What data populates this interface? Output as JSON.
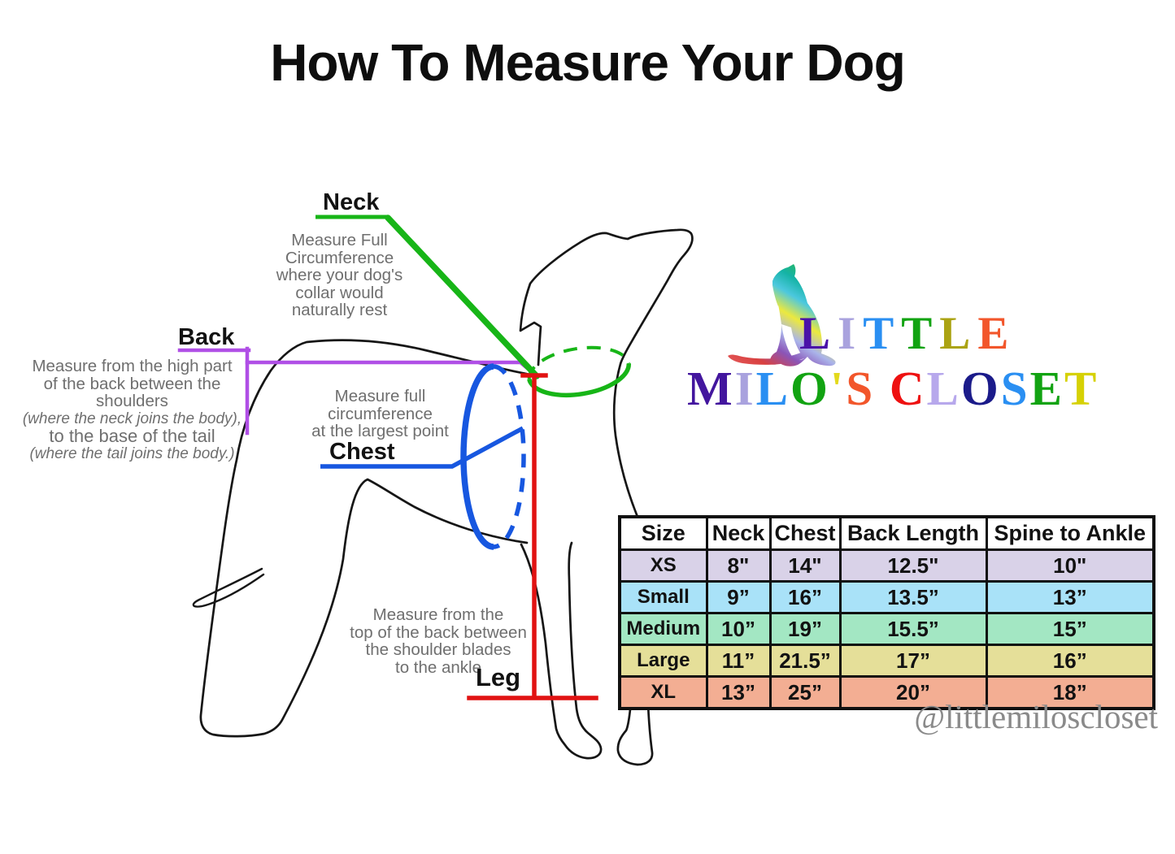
{
  "title": "How To Measure Your Dog",
  "annotations": {
    "neck": {
      "label": "Neck",
      "lines": [
        "Measure Full",
        "Circumference",
        "where your dog's",
        "collar would",
        "naturally rest"
      ]
    },
    "back": {
      "label": "Back",
      "lines": [
        "Measure from the high part",
        "of the back between the",
        "shoulders",
        "(where the neck joins the body),",
        "to the base of the tail",
        "(where the tail joins the body.)"
      ]
    },
    "chest": {
      "label": "Chest",
      "lines": [
        "Measure full",
        "circumference",
        "at the largest point"
      ]
    },
    "leg": {
      "label": "Leg",
      "lines": [
        "Measure from the",
        "top of the back between",
        "the shoulder blades",
        "to the ankle"
      ]
    }
  },
  "colors": {
    "neck_line": "#17b517",
    "back_line": "#b04fe6",
    "chest_line": "#1757e0",
    "leg_line": "#e11212",
    "note_text": "#6f6f6f",
    "outline": "#161616"
  },
  "logo": {
    "line1": [
      {
        "ch": "L",
        "color": "#4a12a8"
      },
      {
        "ch": "I",
        "color": "#a9a2de"
      },
      {
        "ch": "T",
        "color": "#2a8ff2"
      },
      {
        "ch": "T",
        "color": "#12a312"
      },
      {
        "ch": "L",
        "color": "#aba313"
      },
      {
        "ch": "E",
        "color": "#f2562b"
      }
    ],
    "line2": [
      {
        "ch": "M",
        "color": "#43169e"
      },
      {
        "ch": "I",
        "color": "#a9a2de"
      },
      {
        "ch": "L",
        "color": "#2a8ff2"
      },
      {
        "ch": "O",
        "color": "#12a312"
      },
      {
        "ch": "'",
        "color": "#e3d91c"
      },
      {
        "ch": "S",
        "color": "#f2562b"
      },
      {
        "ch": " ",
        "color": "#000000"
      },
      {
        "ch": "C",
        "color": "#ee1111"
      },
      {
        "ch": "L",
        "color": "#b7a8ec"
      },
      {
        "ch": "O",
        "color": "#1b1b8a"
      },
      {
        "ch": "S",
        "color": "#2a8ff2"
      },
      {
        "ch": "E",
        "color": "#12a312"
      },
      {
        "ch": "T",
        "color": "#d6d104"
      }
    ]
  },
  "table": {
    "headers": [
      "Size",
      "Neck",
      "Chest",
      "Back Length",
      "Spine to Ankle"
    ],
    "rows": [
      {
        "size": "XS",
        "neck": "8\"",
        "chest": "14\"",
        "back_length": "12.5\"",
        "spine_to_ankle": "10\"",
        "bg": "#d9d2e8"
      },
      {
        "size": "Small",
        "neck": "9”",
        "chest": "16”",
        "back_length": "13.5”",
        "spine_to_ankle": "13”",
        "bg": "#a9e2f8"
      },
      {
        "size": "Medium",
        "neck": "10”",
        "chest": "19”",
        "back_length": "15.5”",
        "spine_to_ankle": "15”",
        "bg": "#a3e7c3"
      },
      {
        "size": "Large",
        "neck": "11”",
        "chest": "21.5”",
        "back_length": "17”",
        "spine_to_ankle": "16”",
        "bg": "#e5df99"
      },
      {
        "size": "XL",
        "neck": "13”",
        "chest": "25”",
        "back_length": "20”",
        "spine_to_ankle": "18”",
        "bg": "#f3ae93"
      }
    ]
  },
  "handle": "@littlemiloscloset"
}
